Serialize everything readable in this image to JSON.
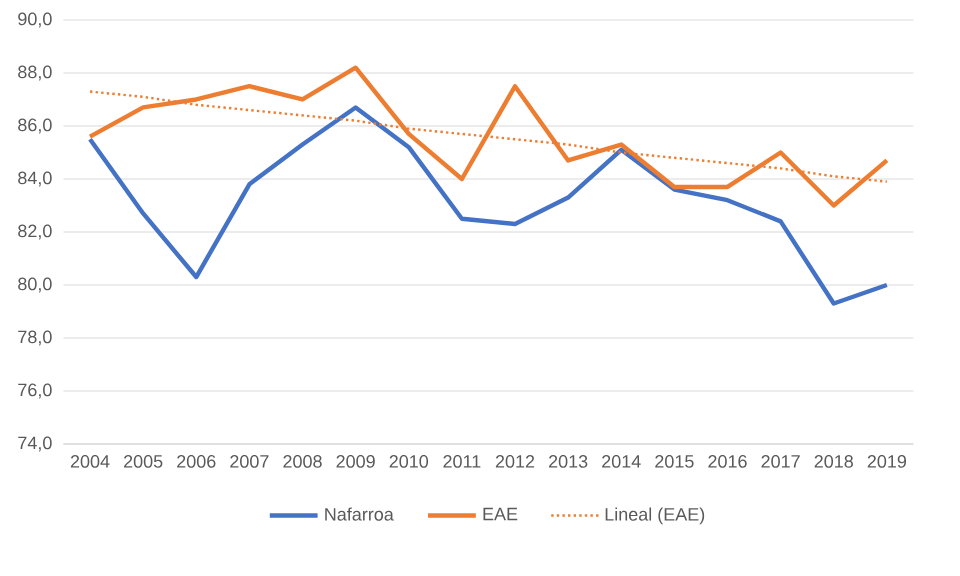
{
  "chart_data": {
    "type": "line",
    "categories": [
      "2004",
      "2005",
      "2006",
      "2007",
      "2008",
      "2009",
      "2010",
      "2011",
      "2012",
      "2013",
      "2014",
      "2015",
      "2016",
      "2017",
      "2018",
      "2019"
    ],
    "series": [
      {
        "name": "Nafarroa",
        "color": "#4472c4",
        "values": [
          85.5,
          82.7,
          80.3,
          83.8,
          85.3,
          86.7,
          85.2,
          82.5,
          82.3,
          83.3,
          85.1,
          83.6,
          83.2,
          82.4,
          79.3,
          80.0
        ]
      },
      {
        "name": "EAE",
        "color": "#ed7d31",
        "values": [
          85.6,
          86.7,
          87.0,
          87.5,
          87.0,
          88.2,
          85.7,
          84.0,
          87.5,
          84.7,
          85.3,
          83.7,
          83.7,
          85.0,
          83.0,
          84.7
        ]
      },
      {
        "name": "Lineal (EAE)",
        "color": "#ed7d31",
        "line_style": "dotted",
        "values": [
          87.3,
          87.1,
          86.8,
          86.6,
          86.4,
          86.2,
          85.9,
          85.7,
          85.5,
          85.3,
          85.0,
          84.8,
          84.6,
          84.4,
          84.1,
          83.9
        ]
      }
    ],
    "ylim": [
      74,
      90
    ],
    "yticks": [
      {
        "value": 74,
        "label": "74,0"
      },
      {
        "value": 76,
        "label": "76,0"
      },
      {
        "value": 78,
        "label": "78,0"
      },
      {
        "value": 80,
        "label": "80,0"
      },
      {
        "value": 82,
        "label": "82,0"
      },
      {
        "value": 84,
        "label": "84,0"
      },
      {
        "value": 86,
        "label": "86,0"
      },
      {
        "value": 88,
        "label": "88,0"
      },
      {
        "value": 90,
        "label": "90,0"
      }
    ],
    "grid": "y",
    "legend": "bottom",
    "marker": "none"
  }
}
